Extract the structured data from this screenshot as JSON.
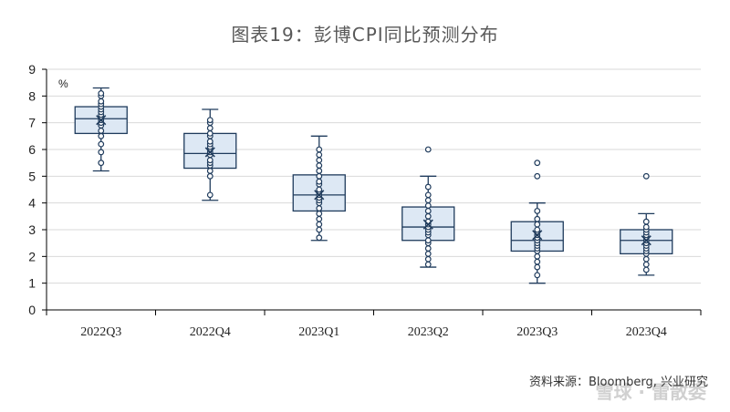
{
  "title": "图表19：彭博CPI同比预测分布",
  "source": "资料来源：Bloomberg, 兴业研究",
  "watermark": "雪球 · 雷散委",
  "colors": {
    "box_fill": "#dde8f4",
    "line": "#1f3b5c",
    "grid": "#d9d9d9",
    "axis": "#000000"
  },
  "chart_data": {
    "type": "boxplot",
    "title": "图表19：彭博CPI同比预测分布",
    "unit_label": "%",
    "ylim": [
      0,
      9
    ],
    "yticks": [
      0,
      1,
      2,
      3,
      4,
      5,
      6,
      7,
      8,
      9
    ],
    "grid": true,
    "categories": [
      "2022Q3",
      "2022Q4",
      "2023Q1",
      "2023Q2",
      "2023Q3",
      "2023Q4"
    ],
    "boxes": [
      {
        "category": "2022Q3",
        "whisker_low": 5.2,
        "q1": 6.6,
        "median": 7.15,
        "q3": 7.6,
        "whisker_high": 8.3,
        "mean": 7.1,
        "outliers": [],
        "points": [
          5.5,
          5.9,
          6.2,
          6.5,
          6.7,
          6.9,
          7.0,
          7.1,
          7.2,
          7.3,
          7.4,
          7.5,
          7.6,
          7.7,
          7.8,
          8.0,
          8.1
        ]
      },
      {
        "category": "2022Q4",
        "whisker_low": 4.1,
        "q1": 5.3,
        "median": 5.85,
        "q3": 6.6,
        "whisker_high": 7.5,
        "mean": 5.9,
        "outliers": [],
        "points": [
          4.3,
          5.0,
          5.2,
          5.4,
          5.5,
          5.6,
          5.8,
          5.9,
          6.0,
          6.1,
          6.2,
          6.3,
          6.5,
          6.6,
          6.8,
          7.0,
          7.1
        ]
      },
      {
        "category": "2023Q1",
        "whisker_low": 2.6,
        "q1": 3.7,
        "median": 4.3,
        "q3": 5.05,
        "whisker_high": 6.5,
        "mean": 4.3,
        "outliers": [],
        "points": [
          2.7,
          3.0,
          3.2,
          3.4,
          3.6,
          3.8,
          4.0,
          4.1,
          4.2,
          4.3,
          4.4,
          4.5,
          4.7,
          4.8,
          5.0,
          5.2,
          5.4,
          5.6,
          5.8,
          6.0
        ]
      },
      {
        "category": "2023Q2",
        "whisker_low": 1.6,
        "q1": 2.6,
        "median": 3.1,
        "q3": 3.85,
        "whisker_high": 5.0,
        "mean": 3.2,
        "outliers": [
          6.0
        ],
        "points": [
          1.7,
          1.9,
          2.1,
          2.3,
          2.5,
          2.6,
          2.8,
          2.9,
          3.0,
          3.1,
          3.2,
          3.3,
          3.5,
          3.7,
          3.9,
          4.1,
          4.3,
          4.6
        ]
      },
      {
        "category": "2023Q3",
        "whisker_low": 1.0,
        "q1": 2.2,
        "median": 2.6,
        "q3": 3.3,
        "whisker_high": 4.0,
        "mean": 2.8,
        "outliers": [
          5.0,
          5.5
        ],
        "points": [
          1.3,
          1.6,
          1.8,
          2.0,
          2.2,
          2.3,
          2.4,
          2.5,
          2.6,
          2.7,
          2.8,
          2.9,
          3.0,
          3.2,
          3.4,
          3.7
        ]
      },
      {
        "category": "2023Q4",
        "whisker_low": 1.3,
        "q1": 2.1,
        "median": 2.6,
        "q3": 3.0,
        "whisker_high": 3.6,
        "mean": 2.6,
        "outliers": [
          5.0
        ],
        "points": [
          1.5,
          1.7,
          1.9,
          2.1,
          2.2,
          2.3,
          2.4,
          2.5,
          2.6,
          2.7,
          2.8,
          2.9,
          3.0,
          3.1,
          3.3
        ]
      }
    ]
  }
}
